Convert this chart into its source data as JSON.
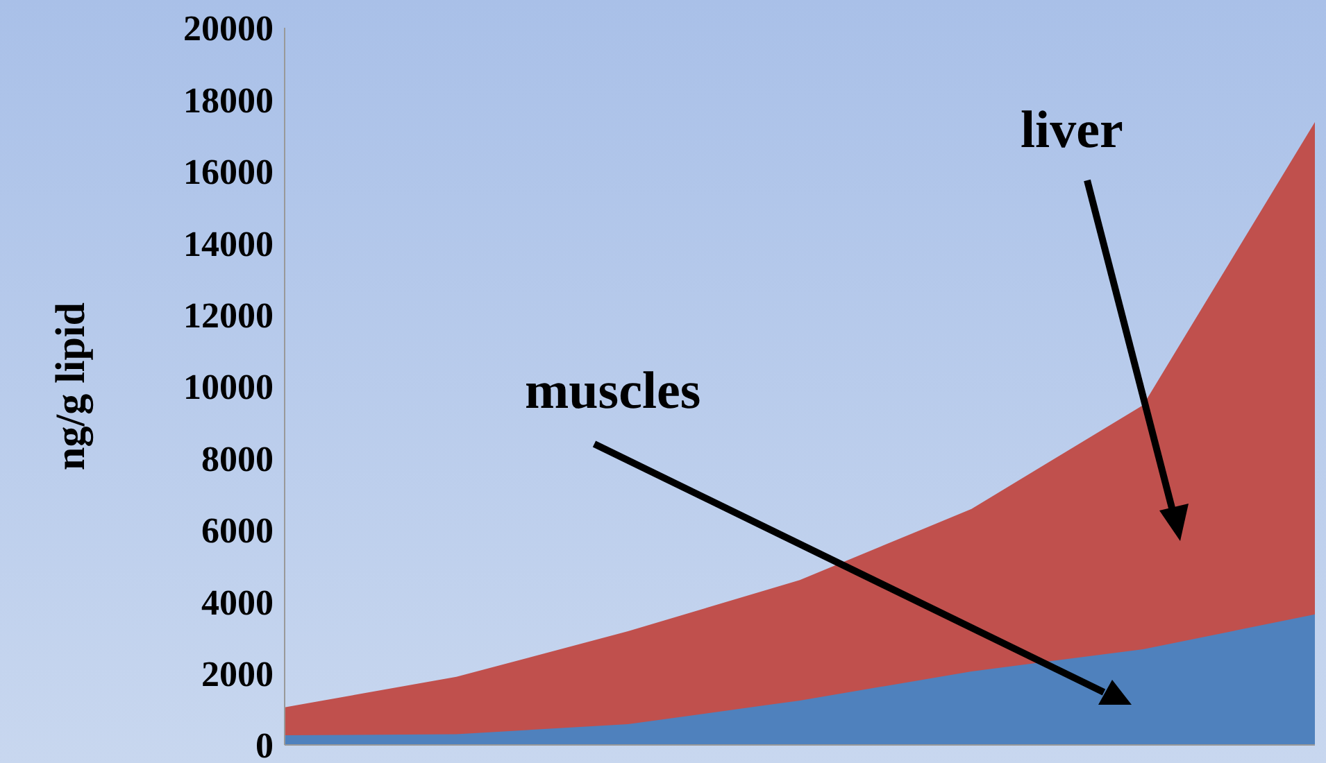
{
  "chart_data": {
    "type": "area",
    "ylabel": "ng/g lipid",
    "categories": [
      null,
      null,
      null,
      null,
      null,
      null,
      null
    ],
    "series": [
      {
        "name": "muscles",
        "color": "#4f81bd",
        "values": [
          270,
          300,
          580,
          1240,
          2050,
          2670,
          3640
        ]
      },
      {
        "name": "liver",
        "color": "#c0504d",
        "values": [
          1050,
          1900,
          3170,
          4600,
          6580,
          9480,
          17370
        ]
      }
    ],
    "ylim": [
      0,
      20000
    ],
    "yticks": [
      0,
      2000,
      4000,
      6000,
      8000,
      10000,
      12000,
      14000,
      16000,
      18000,
      20000
    ],
    "legend": false
  }
}
